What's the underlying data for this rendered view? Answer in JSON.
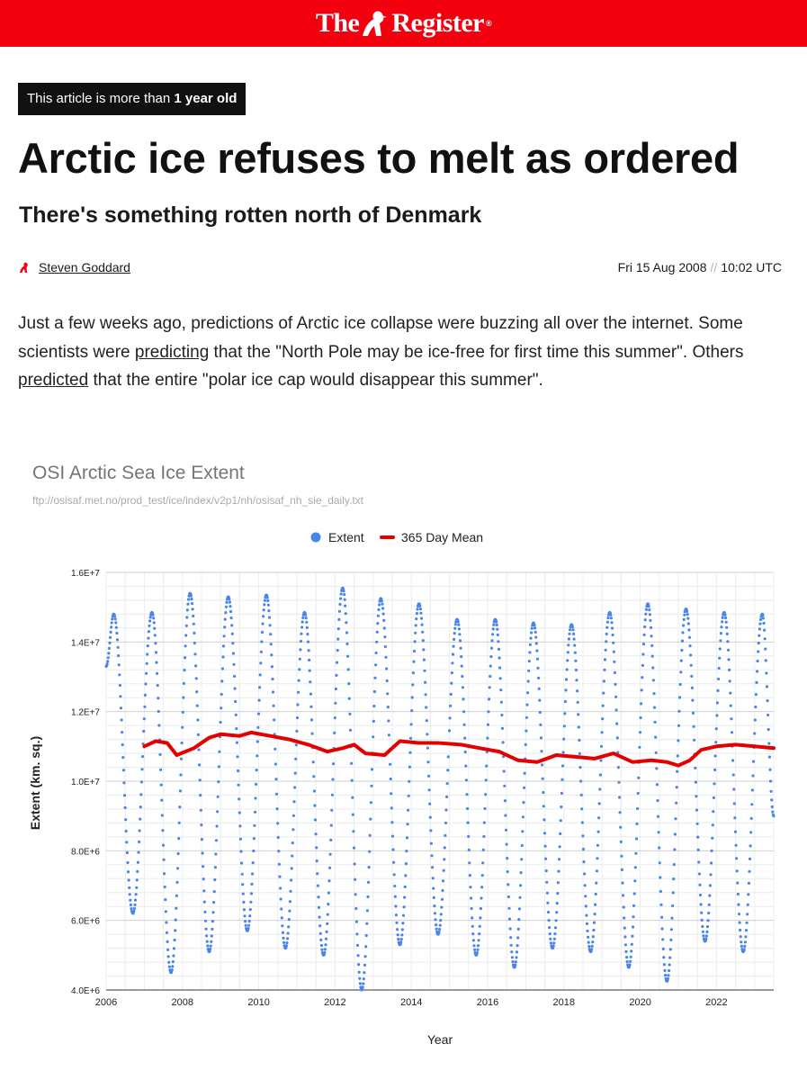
{
  "masthead": {
    "brand_the": "The",
    "brand_register": "Register",
    "brand_mark": "®"
  },
  "article": {
    "age_badge_prefix": "This article is more than ",
    "age_badge_bold": "1 year old",
    "headline": "Arctic ice refuses to melt as ordered",
    "standfirst": "There's something rotten north of Denmark",
    "author": "Steven Goddard",
    "date": "Fri 15 Aug 2008",
    "date_separator": "//",
    "time": "10:02 UTC",
    "lead": {
      "t1": "Just a few weeks ago, predictions of Arctic ice collapse were buzzing all over the internet. Some scientists were ",
      "link1": "predicting",
      "t2": " that the \"North Pole may be ice-free for first time this summer\". Others ",
      "link2": "predicted",
      "t3": " that the entire \"polar ice cap would disappear this summer\"."
    }
  },
  "colors": {
    "brand_red": "#f2000d",
    "extent_blue": "#4a86e8",
    "mean_red": "#e50000"
  },
  "chart_data": {
    "type": "scatter",
    "title": "OSI Arctic Sea Ice Extent",
    "subtitle": "ftp://osisaf.met.no/prod_test/ice/index/v2p1/nh/osisaf_nh_sie_daily.txt",
    "xlabel": "Year",
    "ylabel": "Extent (km. sq.)",
    "xlim": [
      2006,
      2023.5
    ],
    "ylim": [
      4000000,
      16000000
    ],
    "x_ticks": [
      "2006",
      "2008",
      "2010",
      "2012",
      "2014",
      "2016",
      "2018",
      "2020",
      "2022"
    ],
    "y_ticks": [
      "4.0E+6",
      "6.0E+6",
      "8.0E+6",
      "1.0E+7",
      "1.2E+7",
      "1.4E+7",
      "1.6E+7"
    ],
    "grid": true,
    "legend_position": "top",
    "series": [
      {
        "name": "Extent",
        "kind": "points",
        "color": "#4a86e8",
        "seasonal_peaks": [
          [
            2006.2,
            14800000
          ],
          [
            2007.2,
            14850000
          ],
          [
            2008.2,
            15400000
          ],
          [
            2009.2,
            15300000
          ],
          [
            2010.2,
            15350000
          ],
          [
            2011.2,
            14850000
          ],
          [
            2012.2,
            15550000
          ],
          [
            2013.2,
            15250000
          ],
          [
            2014.2,
            15100000
          ],
          [
            2015.2,
            14650000
          ],
          [
            2016.2,
            14650000
          ],
          [
            2017.2,
            14550000
          ],
          [
            2018.2,
            14500000
          ],
          [
            2019.2,
            14850000
          ],
          [
            2020.2,
            15100000
          ],
          [
            2021.2,
            14950000
          ],
          [
            2022.2,
            14850000
          ],
          [
            2023.2,
            14800000
          ]
        ],
        "seasonal_minima": [
          [
            2006.7,
            6200000
          ],
          [
            2007.7,
            4500000
          ],
          [
            2008.7,
            5100000
          ],
          [
            2009.7,
            5700000
          ],
          [
            2010.7,
            5200000
          ],
          [
            2011.7,
            5000000
          ],
          [
            2012.7,
            4000000
          ],
          [
            2013.7,
            5300000
          ],
          [
            2014.7,
            5600000
          ],
          [
            2015.7,
            5000000
          ],
          [
            2016.7,
            4650000
          ],
          [
            2017.7,
            5200000
          ],
          [
            2018.7,
            5100000
          ],
          [
            2019.7,
            4650000
          ],
          [
            2020.7,
            4250000
          ],
          [
            2021.7,
            5400000
          ],
          [
            2022.7,
            5100000
          ]
        ],
        "last_value": [
          2023.5,
          9000000
        ]
      },
      {
        "name": "365 Day  Mean",
        "kind": "line",
        "color": "#e50000",
        "values": [
          [
            2007.0,
            11000000
          ],
          [
            2007.3,
            11150000
          ],
          [
            2007.6,
            11100000
          ],
          [
            2007.85,
            10750000
          ],
          [
            2008.3,
            10950000
          ],
          [
            2008.7,
            11250000
          ],
          [
            2009.0,
            11350000
          ],
          [
            2009.5,
            11300000
          ],
          [
            2009.8,
            11400000
          ],
          [
            2010.3,
            11300000
          ],
          [
            2010.8,
            11200000
          ],
          [
            2011.3,
            11050000
          ],
          [
            2011.8,
            10850000
          ],
          [
            2012.2,
            10950000
          ],
          [
            2012.5,
            11050000
          ],
          [
            2012.8,
            10800000
          ],
          [
            2013.3,
            10750000
          ],
          [
            2013.7,
            11150000
          ],
          [
            2014.2,
            11100000
          ],
          [
            2014.7,
            11100000
          ],
          [
            2015.3,
            11050000
          ],
          [
            2015.8,
            10950000
          ],
          [
            2016.3,
            10850000
          ],
          [
            2016.8,
            10600000
          ],
          [
            2017.3,
            10550000
          ],
          [
            2017.8,
            10750000
          ],
          [
            2018.3,
            10700000
          ],
          [
            2018.8,
            10650000
          ],
          [
            2019.3,
            10800000
          ],
          [
            2019.8,
            10550000
          ],
          [
            2020.3,
            10600000
          ],
          [
            2020.7,
            10550000
          ],
          [
            2021.0,
            10450000
          ],
          [
            2021.3,
            10600000
          ],
          [
            2021.6,
            10900000
          ],
          [
            2022.0,
            11000000
          ],
          [
            2022.5,
            11050000
          ],
          [
            2023.0,
            11000000
          ],
          [
            2023.5,
            10950000
          ]
        ]
      }
    ]
  }
}
